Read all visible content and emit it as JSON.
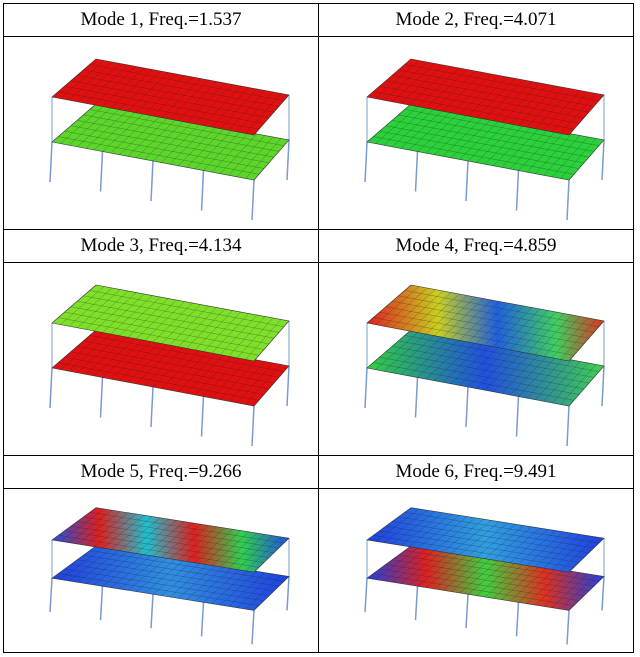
{
  "table": {
    "rows": [
      [
        "Mode 1, Freq.=1.537",
        "Mode 2, Freq.=4.071"
      ],
      [
        "Mode 3, Freq.=4.134",
        "Mode 4, Freq.=4.859"
      ],
      [
        "Mode 5, Freq.=9.266",
        "Mode 6, Freq.=9.491"
      ]
    ]
  }
}
